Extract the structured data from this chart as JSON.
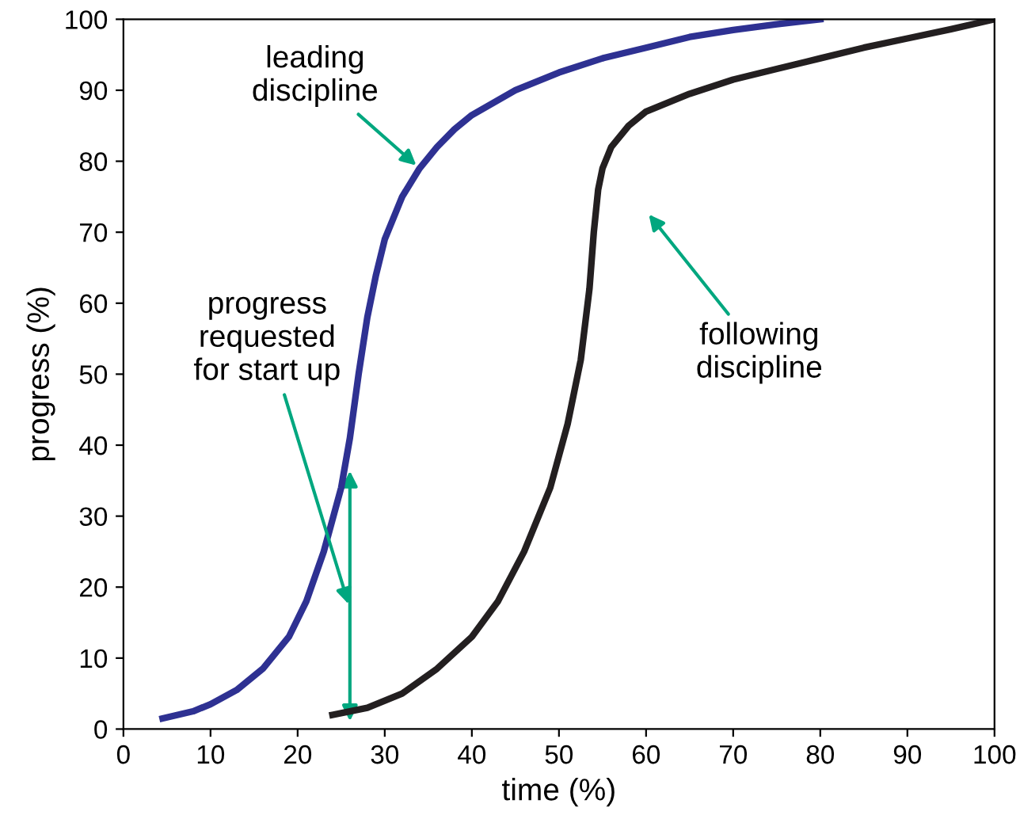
{
  "chart_data": {
    "type": "line",
    "xlabel": "time (%)",
    "ylabel": "progress (%)",
    "xlim": [
      0,
      100
    ],
    "ylim": [
      0,
      100
    ],
    "xticks": [
      0,
      10,
      20,
      30,
      40,
      50,
      60,
      70,
      80,
      90,
      100
    ],
    "yticks": [
      0,
      10,
      20,
      30,
      40,
      50,
      60,
      70,
      80,
      90,
      100
    ],
    "grid": false,
    "legend": false,
    "marker": "none",
    "line_style": "solid",
    "series": [
      {
        "color": "#2e3192",
        "x": [
          4.5,
          8,
          10,
          13,
          16,
          19,
          21,
          23,
          25,
          26,
          27,
          28,
          29,
          30,
          32,
          34,
          36,
          38,
          40,
          45,
          50,
          55,
          60,
          65,
          70,
          75,
          80
        ],
        "values": [
          1.5,
          2.5,
          3.5,
          5.5,
          8.5,
          13,
          18,
          25,
          34,
          41,
          50,
          58,
          64,
          69,
          75,
          79,
          82,
          84.5,
          86.5,
          90,
          92.5,
          94.5,
          96,
          97.5,
          98.5,
          99.3,
          100
        ]
      },
      {
        "color": "#231f20",
        "x": [
          24,
          28,
          32,
          36,
          40,
          43,
          46,
          49,
          51,
          52.5,
          53.5,
          54,
          54.5,
          55,
          56,
          58,
          60,
          65,
          70,
          75,
          80,
          85,
          90,
          95,
          100
        ],
        "values": [
          2,
          3,
          5,
          8.5,
          13,
          18,
          25,
          34,
          43,
          52,
          62,
          70,
          76,
          79,
          82,
          85,
          87,
          89.5,
          91.5,
          93,
          94.5,
          96,
          97.3,
          98.6,
          100
        ]
      }
    ],
    "annotations": [
      {
        "text": "leading\ndiscipline",
        "x": 34,
        "y": 79
      },
      "progress\nrequested\nfor start up",
      "following\ndiscipline"
    ]
  }
}
